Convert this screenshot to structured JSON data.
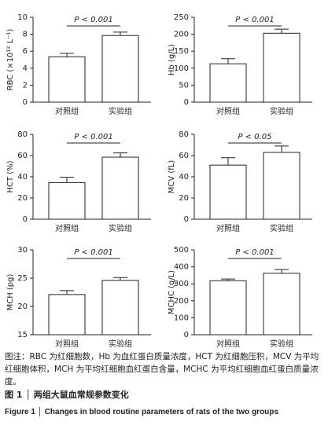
{
  "chart_data": [
    {
      "type": "bar",
      "ylabel": "RBC (×10¹² L⁻¹)",
      "annotation": "P < 0.001",
      "categories": [
        "对照组",
        "实验组"
      ],
      "values": [
        5.35,
        7.85
      ],
      "errors": [
        0.4,
        0.4
      ],
      "color": "#ffffff",
      "ylim": [
        0,
        10
      ],
      "yticks": [
        0,
        2,
        4,
        6,
        8,
        10
      ]
    },
    {
      "type": "bar",
      "ylabel": "Hb (g/L)",
      "annotation": "P < 0.001",
      "categories": [
        "对照组",
        "实验组"
      ],
      "values": [
        113,
        203
      ],
      "errors": [
        15,
        12
      ],
      "color": "#ffffff",
      "ylim": [
        0,
        250
      ],
      "yticks": [
        0,
        50,
        100,
        150,
        200,
        250
      ]
    },
    {
      "type": "bar",
      "ylabel": "HCT (%)",
      "annotation": "P < 0.001",
      "categories": [
        "对照组",
        "实验组"
      ],
      "values": [
        34.5,
        58.5
      ],
      "errors": [
        5,
        4
      ],
      "color": "#ffffff",
      "ylim": [
        0,
        80
      ],
      "yticks": [
        0,
        20,
        40,
        60,
        80
      ]
    },
    {
      "type": "bar",
      "ylabel": "MCV (fL)",
      "annotation": "P < 0.05",
      "categories": [
        "对照组",
        "实验组"
      ],
      "values": [
        51,
        63
      ],
      "errors": [
        7,
        6
      ],
      "color": "#ffffff",
      "ylim": [
        0,
        80
      ],
      "yticks": [
        0,
        20,
        40,
        60,
        80
      ]
    },
    {
      "type": "bar",
      "ylabel": "MCH (pg)",
      "annotation": "P < 0.001",
      "categories": [
        "对照组",
        "实验组"
      ],
      "values": [
        22.1,
        24.6
      ],
      "errors": [
        0.7,
        0.5
      ],
      "color": "#ffffff",
      "ylim": [
        15,
        30
      ],
      "yticks": [
        15,
        20,
        25,
        30
      ]
    },
    {
      "type": "bar",
      "ylabel": "MCHC (g/L)",
      "annotation": "P < 0.001",
      "categories": [
        "对照组",
        "实验组"
      ],
      "values": [
        318,
        362
      ],
      "errors": [
        10,
        22
      ],
      "color": "#ffffff",
      "ylim": [
        0,
        500
      ],
      "yticks": [
        0,
        100,
        200,
        300,
        400,
        500
      ]
    }
  ],
  "caption": {
    "note": "图注：RBC 为红细胞数，Hb 为血红蛋白质量浓度，HCT 为红细胞压积，MCV 为平均红细胞体积，MCH 为平均红细胞血红蛋白含量，MCHC 为平均红细胞血红蛋白质量浓度。",
    "title_cn": "图 1 │ 两组大鼠血常规参数变化",
    "title_en": "Figure 1 │ Changes in blood routine parameters of rats of the two groups"
  }
}
